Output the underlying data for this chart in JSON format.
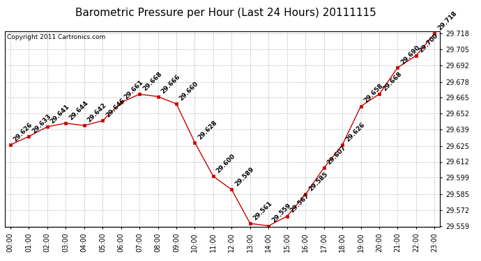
{
  "title": "Barometric Pressure per Hour (Last 24 Hours) 20111115",
  "copyright": "Copyright 2011 Cartronics.com",
  "hours": [
    "00:00",
    "01:00",
    "02:00",
    "03:00",
    "04:00",
    "05:00",
    "06:00",
    "07:00",
    "08:00",
    "09:00",
    "10:00",
    "11:00",
    "12:00",
    "13:00",
    "14:00",
    "15:00",
    "16:00",
    "17:00",
    "18:00",
    "19:00",
    "20:00",
    "21:00",
    "22:00",
    "23:00"
  ],
  "values": [
    29.626,
    29.633,
    29.641,
    29.644,
    29.642,
    29.646,
    29.661,
    29.668,
    29.666,
    29.66,
    29.628,
    29.6,
    29.589,
    29.561,
    29.559,
    29.567,
    29.585,
    29.607,
    29.626,
    29.658,
    29.668,
    29.69,
    29.7,
    29.718
  ],
  "ylim_min": 29.559,
  "ylim_max": 29.718,
  "yticks": [
    29.559,
    29.572,
    29.585,
    29.599,
    29.612,
    29.625,
    29.639,
    29.652,
    29.665,
    29.678,
    29.692,
    29.705,
    29.718
  ],
  "line_color": "#cc0000",
  "marker_color": "#cc0000",
  "bg_color": "#ffffff",
  "grid_color": "#bbbbbb",
  "title_fontsize": 11,
  "copyright_fontsize": 6.5,
  "label_fontsize": 6.5,
  "tick_fontsize": 7
}
